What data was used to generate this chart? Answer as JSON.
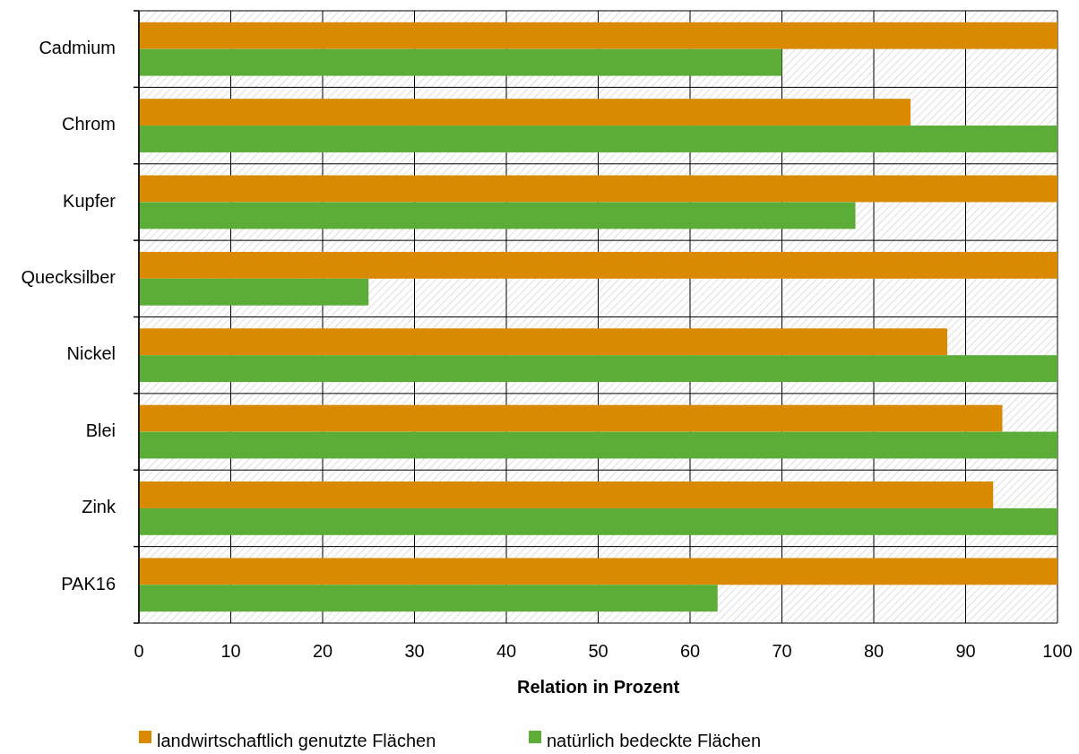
{
  "chart_data": {
    "type": "bar",
    "orientation": "horizontal",
    "xlabel": "Relation in Prozent",
    "categories": [
      "Cadmium",
      "Chrom",
      "Kupfer",
      "Quecksilber",
      "Nickel",
      "Blei",
      "Zink",
      "PAK16"
    ],
    "series": [
      {
        "name": "landwirtschaftlich genutzte Flächen",
        "color": "#d98a00",
        "values": [
          100,
          84,
          100,
          100,
          88,
          94,
          93,
          100
        ]
      },
      {
        "name": "natürlich bedeckte Flächen",
        "color": "#5cad38",
        "values": [
          70,
          100,
          78,
          25,
          100,
          100,
          100,
          63
        ]
      }
    ],
    "xlim": [
      0,
      100
    ],
    "xticks": [
      0,
      10,
      20,
      30,
      40,
      50,
      60,
      70,
      80,
      90,
      100
    ],
    "grid": true,
    "legend": "bottom"
  }
}
